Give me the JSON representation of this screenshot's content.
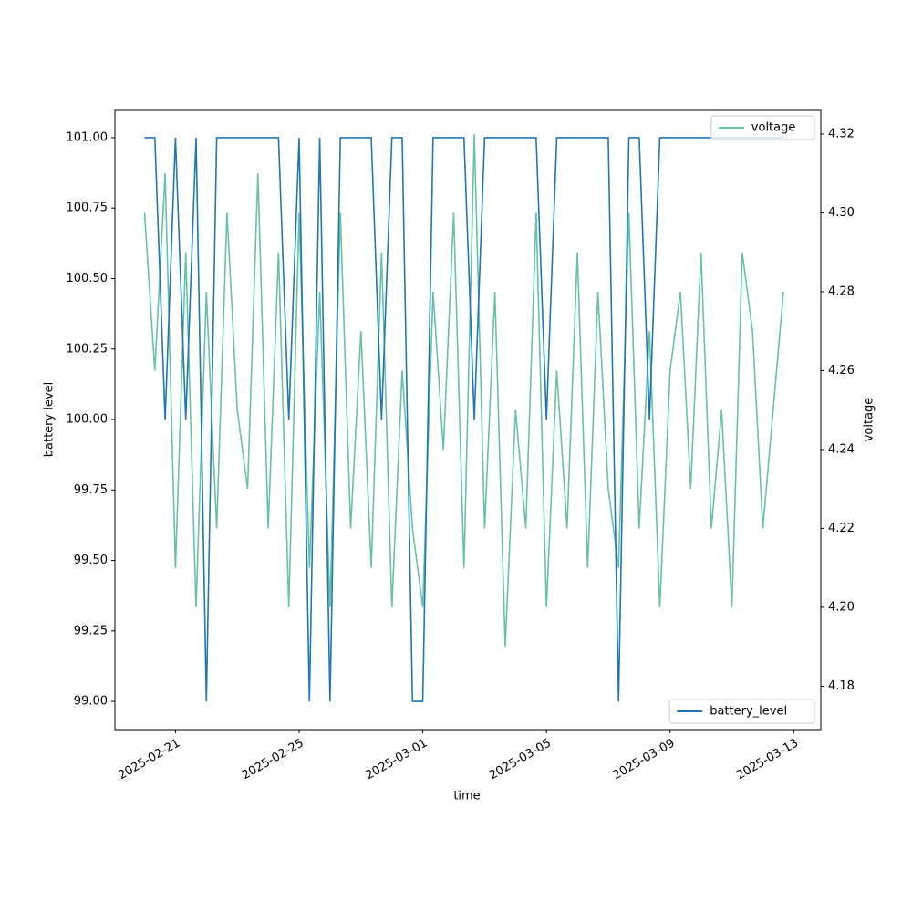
{
  "chart_data": {
    "type": "line",
    "x_label": "time",
    "y_label": "battery level",
    "y2_label": "voltage",
    "x": [
      "2025-02-20T00:00",
      "2025-02-20T08:00",
      "2025-02-20T16:00",
      "2025-02-21T00:00",
      "2025-02-21T08:00",
      "2025-02-21T16:00",
      "2025-02-22T00:00",
      "2025-02-22T08:00",
      "2025-02-22T16:00",
      "2025-02-23T00:00",
      "2025-02-23T08:00",
      "2025-02-23T16:00",
      "2025-02-24T00:00",
      "2025-02-24T08:00",
      "2025-02-24T16:00",
      "2025-02-25T00:00",
      "2025-02-25T08:00",
      "2025-02-25T16:00",
      "2025-02-26T00:00",
      "2025-02-26T08:00",
      "2025-02-26T16:00",
      "2025-02-27T00:00",
      "2025-02-27T08:00",
      "2025-02-27T16:00",
      "2025-02-28T00:00",
      "2025-02-28T08:00",
      "2025-02-28T16:00",
      "2025-03-01T00:00",
      "2025-03-01T08:00",
      "2025-03-01T16:00",
      "2025-03-02T00:00",
      "2025-03-02T08:00",
      "2025-03-02T16:00",
      "2025-03-03T00:00",
      "2025-03-03T08:00",
      "2025-03-03T16:00",
      "2025-03-04T00:00",
      "2025-03-04T08:00",
      "2025-03-04T16:00",
      "2025-03-05T00:00",
      "2025-03-05T08:00",
      "2025-03-05T16:00",
      "2025-03-06T00:00",
      "2025-03-06T08:00",
      "2025-03-06T16:00",
      "2025-03-07T00:00",
      "2025-03-07T08:00",
      "2025-03-07T16:00",
      "2025-03-08T00:00",
      "2025-03-08T08:00",
      "2025-03-08T16:00",
      "2025-03-09T00:00",
      "2025-03-09T08:00",
      "2025-03-09T16:00",
      "2025-03-10T00:00",
      "2025-03-10T08:00",
      "2025-03-10T16:00",
      "2025-03-11T00:00",
      "2025-03-11T08:00",
      "2025-03-11T16:00",
      "2025-03-12T00:00",
      "2025-03-12T08:00",
      "2025-03-12T16:00"
    ],
    "series": [
      {
        "name": "battery_level",
        "color": "#1f77b4",
        "axis": "y",
        "legend": "lower right",
        "values": [
          101,
          101,
          100,
          101,
          100,
          101,
          99,
          101,
          101,
          101,
          101,
          101,
          101,
          101,
          100,
          101,
          99,
          101,
          99,
          101,
          101,
          101,
          101,
          100,
          101,
          101,
          99,
          99,
          101,
          101,
          101,
          101,
          100,
          101,
          101,
          101,
          101,
          101,
          101,
          100,
          101,
          101,
          101,
          101,
          101,
          101,
          99,
          101,
          101,
          100,
          101,
          101,
          101,
          101,
          101,
          101,
          101,
          101,
          101,
          101,
          101,
          101,
          101
        ]
      },
      {
        "name": "voltage",
        "color": "#66c2a5",
        "axis": "y2",
        "legend": "upper right",
        "values": [
          4.3,
          4.26,
          4.31,
          4.21,
          4.29,
          4.2,
          4.28,
          4.22,
          4.3,
          4.25,
          4.23,
          4.31,
          4.22,
          4.29,
          4.2,
          4.3,
          4.21,
          4.28,
          4.2,
          4.3,
          4.22,
          4.27,
          4.21,
          4.29,
          4.2,
          4.26,
          4.22,
          4.2,
          4.28,
          4.24,
          4.3,
          4.21,
          4.32,
          4.22,
          4.28,
          4.19,
          4.25,
          4.22,
          4.3,
          4.2,
          4.26,
          4.22,
          4.29,
          4.21,
          4.28,
          4.23,
          4.21,
          4.3,
          4.22,
          4.27,
          4.2,
          4.26,
          4.28,
          4.23,
          4.29,
          4.22,
          4.25,
          4.2,
          4.29,
          4.27,
          4.22,
          4.25,
          4.28
        ]
      }
    ],
    "xlim": [
      "2025-02-19T01:00",
      "2025-03-13T21:00"
    ],
    "xticks": [
      "2025-02-21",
      "2025-02-25",
      "2025-03-01",
      "2025-03-05",
      "2025-03-09",
      "2025-03-13"
    ],
    "ylim": [
      98.9,
      101.097
    ],
    "yticks": [
      {
        "value": 99,
        "label": "99.00"
      },
      {
        "value": 99.25,
        "label": "99.25"
      },
      {
        "value": 99.5,
        "label": "99.50"
      },
      {
        "value": 99.75,
        "label": "99.75"
      },
      {
        "value": 100,
        "label": "100.00"
      },
      {
        "value": 100.25,
        "label": "100.25"
      },
      {
        "value": 100.5,
        "label": "100.50"
      },
      {
        "value": 100.75,
        "label": "100.75"
      },
      {
        "value": 101,
        "label": "101.00"
      }
    ],
    "y2lim": [
      4.169,
      4.326
    ],
    "y2ticks": [
      4.18,
      {
        "value": 4.2,
        "label": "4.20"
      },
      4.22,
      4.24,
      4.26,
      4.28,
      {
        "value": 4.3,
        "label": "4.30"
      },
      4.32
    ],
    "grid": false
  }
}
